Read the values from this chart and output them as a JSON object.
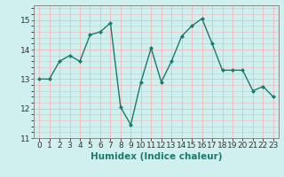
{
  "x": [
    0,
    1,
    2,
    3,
    4,
    5,
    6,
    7,
    8,
    9,
    10,
    11,
    12,
    13,
    14,
    15,
    16,
    17,
    18,
    19,
    20,
    21,
    22,
    23
  ],
  "y": [
    13.0,
    13.0,
    13.6,
    13.8,
    13.6,
    14.5,
    14.6,
    14.9,
    12.05,
    11.45,
    12.9,
    14.05,
    12.9,
    13.6,
    14.45,
    14.8,
    15.05,
    14.2,
    13.3,
    13.3,
    13.3,
    12.6,
    12.75,
    12.4
  ],
  "line_color": "#1a7a6e",
  "marker": "D",
  "marker_size": 2.0,
  "bg_color": "#cff0ee",
  "grid_color": "#f0b8b8",
  "xlabel": "Humidex (Indice chaleur)",
  "ylim": [
    11,
    15.5
  ],
  "xlim": [
    -0.5,
    23.5
  ],
  "yticks": [
    11,
    12,
    13,
    14,
    15
  ],
  "xticks": [
    0,
    1,
    2,
    3,
    4,
    5,
    6,
    7,
    8,
    9,
    10,
    11,
    12,
    13,
    14,
    15,
    16,
    17,
    18,
    19,
    20,
    21,
    22,
    23
  ],
  "xtick_labels": [
    "0",
    "1",
    "2",
    "3",
    "4",
    "5",
    "6",
    "7",
    "8",
    "9",
    "10",
    "11",
    "12",
    "13",
    "14",
    "15",
    "16",
    "17",
    "18",
    "19",
    "20",
    "21",
    "22",
    "23"
  ],
  "line_width": 1.0,
  "label_fontsize": 7.5,
  "tick_fontsize": 6.5,
  "xlabel_color": "#1a7a6e",
  "tick_color": "#333333",
  "spine_color": "#888888"
}
